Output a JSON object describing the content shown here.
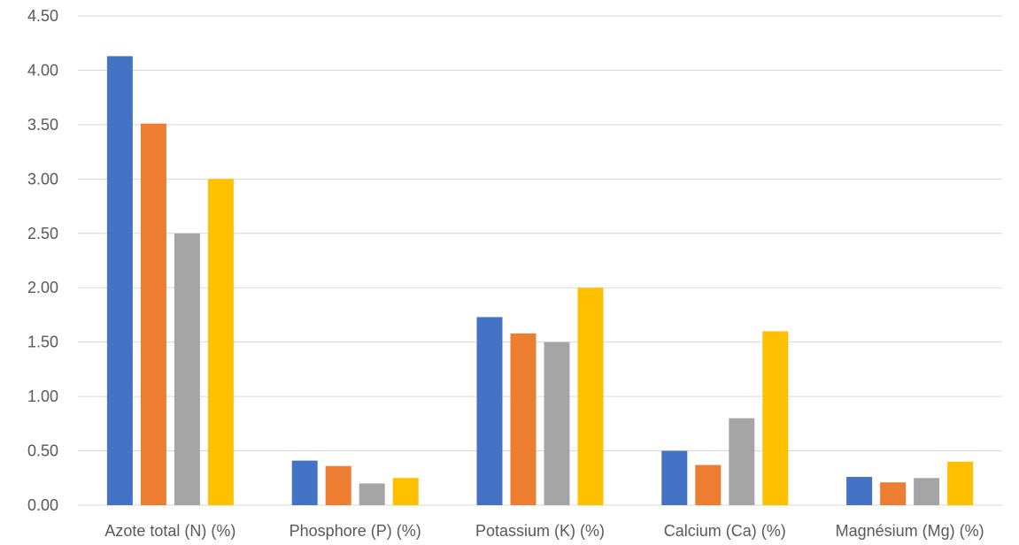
{
  "chart_data": {
    "type": "bar",
    "categories": [
      "Azote total (N) (%)",
      "Phosphore (P) (%)",
      "Potassium (K) (%)",
      "Calcium (Ca) (%)",
      "Magnésium (Mg) (%)"
    ],
    "series": [
      {
        "values": [
          4.13,
          0.41,
          1.73,
          0.5,
          0.26
        ],
        "color": "#4472C4"
      },
      {
        "values": [
          3.51,
          0.36,
          1.58,
          0.37,
          0.21
        ],
        "color": "#ED7D31"
      },
      {
        "values": [
          2.5,
          0.2,
          1.5,
          0.8,
          0.25
        ],
        "color": "#A5A5A5"
      },
      {
        "values": [
          3.0,
          0.25,
          2.0,
          1.6,
          0.4
        ],
        "color": "#FFC000"
      }
    ],
    "y_ticks": [
      "0.00",
      "0.50",
      "1.00",
      "1.50",
      "2.00",
      "2.50",
      "3.00",
      "3.50",
      "4.00",
      "4.50"
    ],
    "ylim": [
      0,
      4.5
    ],
    "grid": true,
    "legend": "none"
  }
}
